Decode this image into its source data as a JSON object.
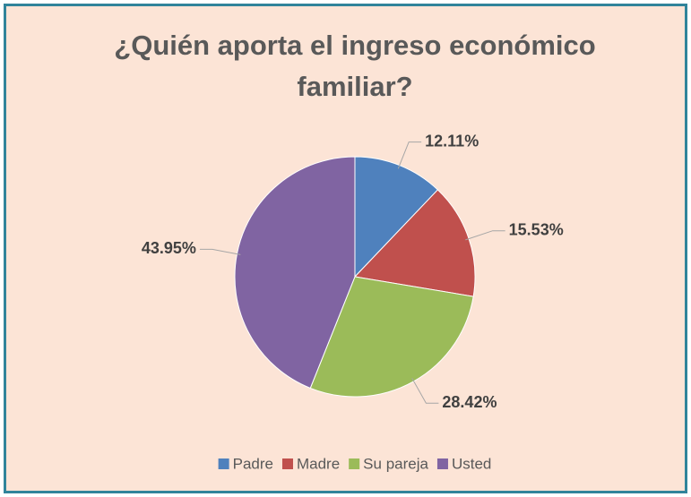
{
  "chart_data": {
    "type": "pie",
    "title": "¿Quién aporta el ingreso económico familiar?",
    "categories": [
      "Padre",
      "Madre",
      "Su pareja",
      "Usted"
    ],
    "values": [
      12.11,
      15.53,
      28.42,
      43.95
    ],
    "value_labels": [
      "12.11%",
      "15.53%",
      "28.42%",
      "43.95%"
    ],
    "colors": [
      "#4f81bd",
      "#c0504d",
      "#9bbb59",
      "#8064a2"
    ],
    "legend": "bottom"
  }
}
